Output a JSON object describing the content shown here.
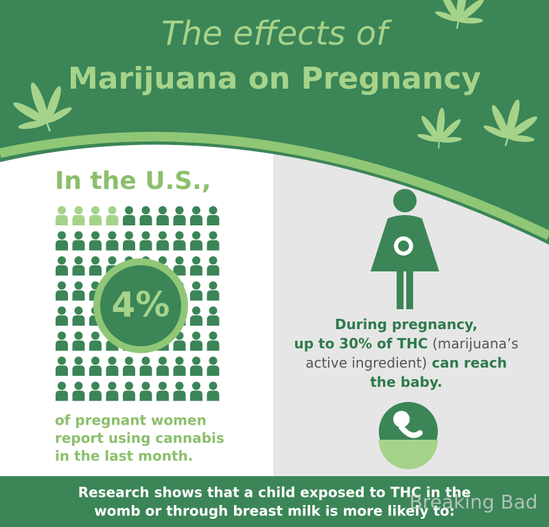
{
  "header": {
    "title_line1": "The effects of",
    "title_line2": "Marijuana on Pregnancy"
  },
  "left": {
    "heading": "In the U.S.,",
    "stat": "4%",
    "caption": [
      "of pregnant women",
      "report using cannabis",
      "in the last month."
    ]
  },
  "right": {
    "caption": [
      [
        "During pregnancy,"
      ],
      [
        "up to 30% of THC",
        " (marijuana’s"
      ],
      [
        "active ingredient)",
        " can reach"
      ],
      [
        "the baby."
      ]
    ]
  },
  "footer": {
    "lines": [
      "Research shows that a child exposed to THC in the",
      "womb or through breast milk is more likely to:"
    ]
  },
  "watermark": "Breaking Bad"
}
